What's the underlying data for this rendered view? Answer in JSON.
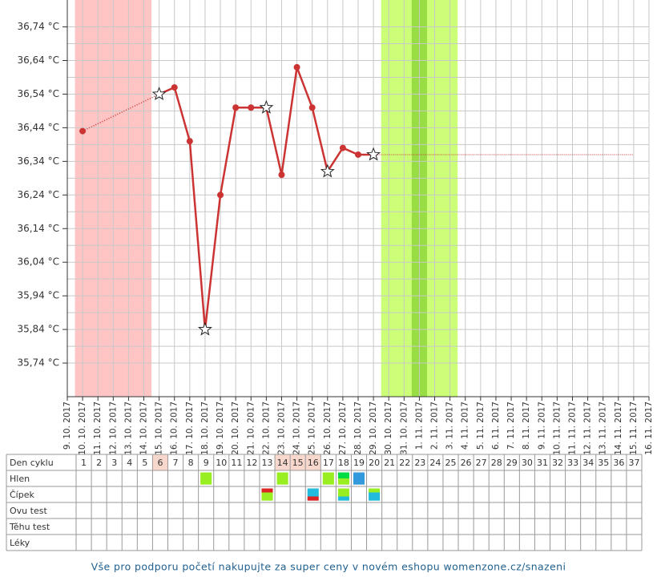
{
  "chart_data": {
    "type": "line",
    "categories": [
      "9. 10. 2017",
      "10. 10. 2017",
      "11. 10. 2017",
      "12. 10. 2017",
      "13. 10. 2017",
      "14. 10. 2017",
      "15. 10. 2017",
      "16. 10. 2017",
      "17. 10. 2017",
      "18. 10. 2017",
      "19. 10. 2017",
      "20. 10. 2017",
      "21. 10. 2017",
      "22. 10. 2017",
      "23. 10. 2017",
      "24. 10. 2017",
      "25. 10. 2017",
      "26. 10. 2017",
      "27. 10. 2017",
      "28. 10. 2017",
      "29. 10. 2017",
      "30. 10. 2017",
      "31. 10. 2017",
      "1. 11. 2017",
      "2. 11. 2017",
      "3. 11. 2017",
      "4. 11. 2017",
      "5. 11. 2017",
      "6. 11. 2017",
      "7. 11. 2017",
      "8. 11. 2017",
      "9. 11. 2017",
      "10. 11. 2017",
      "11. 11. 2017",
      "12. 11. 2017",
      "13. 11. 2017",
      "14. 11. 2017",
      "15. 11. 2017",
      "16. 11. 2017"
    ],
    "series": [
      {
        "color": "#cc3333",
        "values": [
          null,
          36.43,
          null,
          null,
          null,
          null,
          36.54,
          36.56,
          36.4,
          35.84,
          36.24,
          36.5,
          36.5,
          36.5,
          36.3,
          36.62,
          36.5,
          36.31,
          36.38,
          36.36,
          36.36,
          null,
          null,
          null,
          null,
          null,
          null,
          null,
          null,
          null,
          null,
          null,
          null,
          null,
          null,
          null,
          null,
          null,
          null
        ]
      }
    ],
    "markers": [
      null,
      "dot",
      null,
      null,
      null,
      null,
      "star",
      "dot",
      "dot",
      "star",
      "dot",
      "dot",
      "dot",
      "star",
      "dot",
      "dot",
      "dot",
      "star",
      "dot",
      "dot",
      "star",
      null,
      null,
      null,
      null,
      null,
      null,
      null,
      null,
      null,
      null,
      null,
      null,
      null,
      null,
      null,
      null,
      null,
      null
    ],
    "extension_value": 36.36,
    "ylim": [
      35.64,
      36.82
    ],
    "yticks": [
      {
        "value": 36.74,
        "label": "36,74 °C"
      },
      {
        "value": 36.64,
        "label": "36,64 °C"
      },
      {
        "value": 36.54,
        "label": "36,54 °C"
      },
      {
        "value": 36.44,
        "label": "36,44 °C"
      },
      {
        "value": 36.34,
        "label": "36,34 °C"
      },
      {
        "value": 36.24,
        "label": "36,24 °C"
      },
      {
        "value": 36.14,
        "label": "36,14 °C"
      },
      {
        "value": 36.04,
        "label": "36,04 °C"
      },
      {
        "value": 35.94,
        "label": "35,94 °C"
      },
      {
        "value": 35.84,
        "label": "35,84 °C"
      },
      {
        "value": 35.74,
        "label": "35,74 °C"
      }
    ],
    "bands": [
      {
        "from": "10. 10. 2017",
        "to": "14. 10. 2017",
        "color": "#ffc4c4"
      },
      {
        "from": "30. 10. 2017",
        "to": "3. 11. 2017",
        "color": "#ccff77"
      },
      {
        "from": "1. 11. 2017",
        "to": "1. 11. 2017",
        "color": "#99dd44"
      }
    ],
    "grid": true
  },
  "table": {
    "cycle_days": [
      1,
      2,
      3,
      4,
      5,
      6,
      7,
      8,
      9,
      10,
      11,
      12,
      13,
      14,
      15,
      16,
      17,
      18,
      19,
      20,
      21,
      22,
      23,
      24,
      25,
      26,
      27,
      28,
      29,
      30,
      31,
      32,
      33,
      34,
      35,
      36,
      37
    ],
    "highlight_days": [
      6,
      14,
      15,
      16
    ],
    "rows": [
      {
        "label": "Den cyklu"
      },
      {
        "label": "Hlen",
        "entries": [
          {
            "day": 9,
            "colors": [
              "#99ee22"
            ]
          },
          {
            "day": 14,
            "colors": [
              "#99ee22"
            ]
          },
          {
            "day": 17,
            "colors": [
              "#99ee22"
            ]
          },
          {
            "day": 18,
            "colors": [
              "#00dd44",
              "#99ee22"
            ]
          },
          {
            "day": 19,
            "colors": [
              "#3399dd"
            ]
          }
        ]
      },
      {
        "label": "Čípek",
        "entries": [
          {
            "day": 13,
            "colors": [
              "#dd2222",
              "#99ee22",
              "#99ee22"
            ]
          },
          {
            "day": 16,
            "colors": [
              "#22bbdd",
              "#22bbdd",
              "#dd2222"
            ]
          },
          {
            "day": 18,
            "colors": [
              "#99ee22",
              "#99ee22",
              "#22bbdd"
            ]
          },
          {
            "day": 20,
            "colors": [
              "#99ee22",
              "#22bbdd",
              "#22bbdd"
            ]
          }
        ]
      },
      {
        "label": "Ovu test"
      },
      {
        "label": "Těhu test"
      },
      {
        "label": "Léky"
      }
    ]
  },
  "footer": "Vše pro podporu početí nakupujte za super ceny v novém eshopu womenzone.cz/snazeni"
}
